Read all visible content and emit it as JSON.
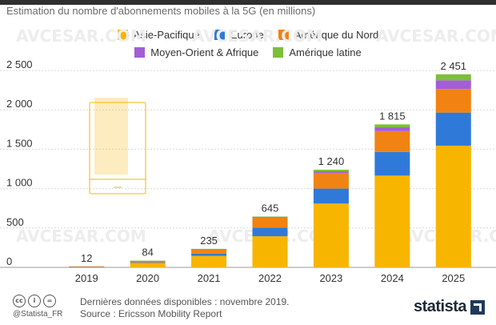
{
  "subtitle": "Estimation du nombre d'abonnements mobiles à la 5G (en millions)",
  "legend": [
    {
      "label": "Asie-Pacifique",
      "color": "#f7b500"
    },
    {
      "label": "Europe",
      "color": "#2f7ad8"
    },
    {
      "label": "Amérique du Nord",
      "color": "#f08312"
    },
    {
      "label": "Moyen-Orient & Afrique",
      "color": "#a35ed6"
    },
    {
      "label": "Amérique latine",
      "color": "#7cbf3a"
    }
  ],
  "chart_data": {
    "type": "bar",
    "stacked": true,
    "categories": [
      "2019",
      "2020",
      "2021",
      "2022",
      "2023",
      "2024",
      "2025"
    ],
    "series": [
      {
        "name": "Asie-Pacifique",
        "color": "#f7b500",
        "values": [
          8,
          60,
          145,
          395,
          810,
          1165,
          1545
        ]
      },
      {
        "name": "Europe",
        "color": "#2f7ad8",
        "values": [
          1,
          5,
          30,
          110,
          190,
          300,
          420
        ]
      },
      {
        "name": "Amérique du Nord",
        "color": "#f08312",
        "values": [
          3,
          17,
          55,
          130,
          200,
          265,
          300
        ]
      },
      {
        "name": "Moyen-Orient & Afrique",
        "color": "#a35ed6",
        "values": [
          0,
          1,
          3,
          6,
          20,
          48,
          110
        ]
      },
      {
        "name": "Amérique latine",
        "color": "#7cbf3a",
        "values": [
          0,
          1,
          2,
          4,
          20,
          37,
          76
        ]
      }
    ],
    "totals": [
      "12",
      "84",
      "235",
      "645",
      "1 240",
      "1 815",
      "2 451"
    ],
    "yticks": [
      "0",
      "500",
      "1 000",
      "1 500",
      "2 000",
      "2 500"
    ],
    "ytick_values": [
      0,
      500,
      1000,
      1500,
      2000,
      2500
    ],
    "ylim": [
      0,
      2500
    ],
    "grid": true
  },
  "footer": {
    "note_line1": "Dernières données disponibles : novembre 2019.",
    "note_line2": "Source : Ericsson Mobility Report",
    "handle": "@Statista_FR",
    "brand": "statista",
    "cc_icons": [
      "cc",
      "i",
      "="
    ]
  },
  "watermark": "AVCESAR.COM"
}
